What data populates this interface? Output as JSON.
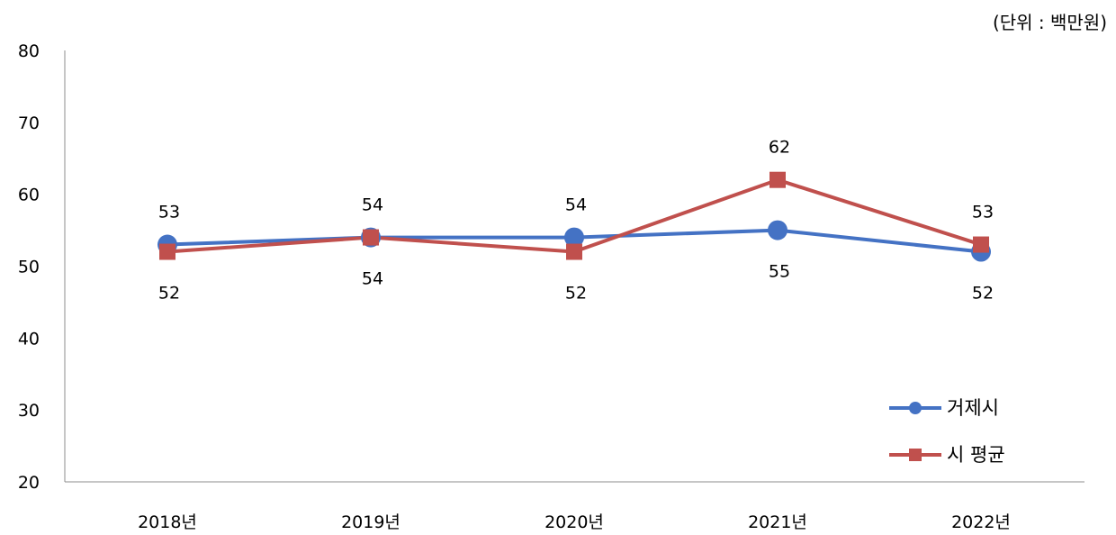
{
  "chart_data": {
    "type": "line",
    "unit_label": "(단위 : 백만원)",
    "categories": [
      "2018년",
      "2019년",
      "2020년",
      "2021년",
      "2022년"
    ],
    "ylim": [
      20,
      80
    ],
    "yticks": [
      20,
      30,
      40,
      50,
      60,
      70,
      80
    ],
    "ytick_labels": [
      "20",
      "30",
      "40",
      "50",
      "60",
      "70",
      "80"
    ],
    "grid": false,
    "legend_position": "bottom-right",
    "series": [
      {
        "name": "거제시",
        "values": [
          53,
          54,
          54,
          55,
          52
        ],
        "value_labels": [
          "53",
          "54",
          "54",
          "55",
          "52"
        ],
        "label_position": [
          "above",
          "above",
          "above",
          "below",
          "below"
        ],
        "color": "#4472C4",
        "marker": "circle"
      },
      {
        "name": "시 평균",
        "values": [
          52,
          54,
          52,
          62,
          53
        ],
        "value_labels": [
          "52",
          "54",
          "52",
          "62",
          "53"
        ],
        "label_position": [
          "below",
          "below",
          "below",
          "above",
          "above"
        ],
        "color": "#C0504D",
        "marker": "square"
      }
    ]
  }
}
